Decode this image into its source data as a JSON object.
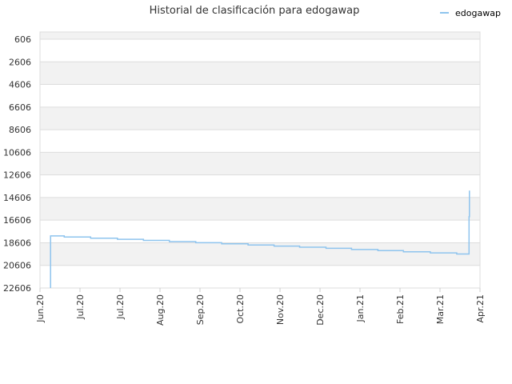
{
  "chart_data": {
    "type": "line",
    "title": "Historial de clasificación para edogawap",
    "xlabel": "",
    "ylabel": "",
    "y_inverted": true,
    "ylim": [
      606,
      22606
    ],
    "y_ticks": [
      "606",
      "2606",
      "4606",
      "6606",
      "8606",
      "10606",
      "12606",
      "14606",
      "16606",
      "18606",
      "20606",
      "22606"
    ],
    "x_ticks": [
      "Jun.20",
      "Jul.20",
      "Jul.20",
      "Aug.20",
      "Sep.20",
      "Oct.20",
      "Nov.20",
      "Dec.20",
      "Jan.21",
      "Feb.21",
      "Mar.21",
      "Apr.21"
    ],
    "x_tick_fraction": [
      0.0,
      0.0909,
      0.1818,
      0.2727,
      0.3636,
      0.4545,
      0.5455,
      0.6364,
      0.7273,
      0.8182,
      0.9091,
      1.0
    ],
    "grid": true,
    "legend_position": "top-right",
    "colors": {
      "series": "#8ec4ee",
      "band": "#f2f2f2",
      "grid": "#dddddd"
    },
    "series": [
      {
        "name": "edogawap",
        "points": [
          [
            0.024,
            22606
          ],
          [
            0.024,
            18000
          ],
          [
            0.055,
            18000
          ],
          [
            0.055,
            18100
          ],
          [
            0.115,
            18100
          ],
          [
            0.115,
            18200
          ],
          [
            0.176,
            18200
          ],
          [
            0.176,
            18300
          ],
          [
            0.235,
            18300
          ],
          [
            0.235,
            18400
          ],
          [
            0.294,
            18400
          ],
          [
            0.294,
            18500
          ],
          [
            0.354,
            18500
          ],
          [
            0.354,
            18600
          ],
          [
            0.413,
            18600
          ],
          [
            0.413,
            18700
          ],
          [
            0.473,
            18700
          ],
          [
            0.473,
            18800
          ],
          [
            0.532,
            18800
          ],
          [
            0.532,
            18900
          ],
          [
            0.59,
            18900
          ],
          [
            0.59,
            19000
          ],
          [
            0.65,
            19000
          ],
          [
            0.65,
            19100
          ],
          [
            0.708,
            19100
          ],
          [
            0.708,
            19200
          ],
          [
            0.768,
            19200
          ],
          [
            0.768,
            19300
          ],
          [
            0.826,
            19300
          ],
          [
            0.826,
            19400
          ],
          [
            0.887,
            19400
          ],
          [
            0.887,
            19500
          ],
          [
            0.947,
            19500
          ],
          [
            0.947,
            19600
          ],
          [
            0.975,
            19600
          ],
          [
            0.975,
            16300
          ],
          [
            0.976,
            16300
          ],
          [
            0.976,
            14000
          ]
        ]
      }
    ]
  }
}
